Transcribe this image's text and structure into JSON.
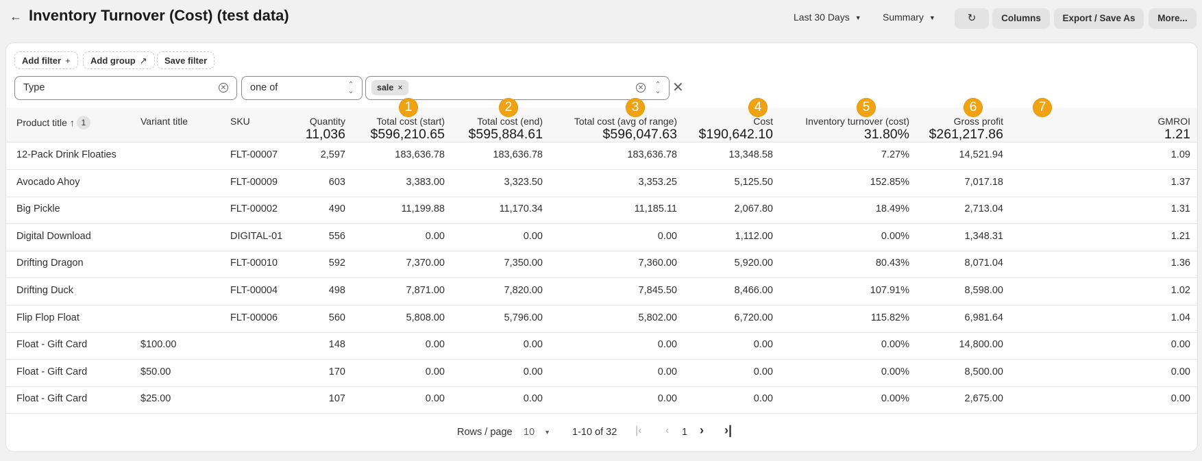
{
  "header": {
    "back_icon": "arrow-left-icon",
    "title": "Inventory Turnover (Cost) (test data)",
    "date_range": "Last 30 Days",
    "view": "Summary",
    "refresh_icon": "refresh-icon",
    "columns_label": "Columns",
    "export_label": "Export / Save As",
    "more_label": "More..."
  },
  "filters": {
    "add_filter": "Add filter",
    "add_filter_icon": "plus-icon",
    "add_group": "Add group",
    "add_group_icon": "add-group-icon",
    "save_filter": "Save filter",
    "field_value": "Type",
    "operator_value": "one of",
    "tag": "sale"
  },
  "table": {
    "columns": [
      {
        "label": "Product title",
        "total": ""
      },
      {
        "label": "Variant title",
        "total": ""
      },
      {
        "label": "SKU",
        "total": ""
      },
      {
        "label": "Quantity",
        "total": "11,036"
      },
      {
        "label": "Total cost (start)",
        "total": "$596,210.65",
        "badge": "1"
      },
      {
        "label": "Total cost (end)",
        "total": "$595,884.61",
        "badge": "2"
      },
      {
        "label": "Total cost (avg of range)",
        "total": "$596,047.63",
        "badge": "3"
      },
      {
        "label": "Cost",
        "total": "$190,642.10",
        "badge": "4"
      },
      {
        "label": "Inventory turnover (cost)",
        "total": "31.80%",
        "badge": "5"
      },
      {
        "label": "Gross profit",
        "total": "$261,217.86",
        "badge": "6"
      },
      {
        "label": "GMROI",
        "total": "1.21",
        "badge": "7"
      }
    ],
    "sort_badge": "1",
    "rows": [
      [
        "12-Pack Drink Floaties",
        "",
        "FLT-00007",
        "2,597",
        "183,636.78",
        "183,636.78",
        "183,636.78",
        "13,348.58",
        "7.27%",
        "14,521.94",
        "1.09"
      ],
      [
        "Avocado Ahoy",
        "",
        "FLT-00009",
        "603",
        "3,383.00",
        "3,323.50",
        "3,353.25",
        "5,125.50",
        "152.85%",
        "7,017.18",
        "1.37"
      ],
      [
        "Big Pickle",
        "",
        "FLT-00002",
        "490",
        "11,199.88",
        "11,170.34",
        "11,185.11",
        "2,067.80",
        "18.49%",
        "2,713.04",
        "1.31"
      ],
      [
        "Digital Download",
        "",
        "DIGITAL-01",
        "556",
        "0.00",
        "0.00",
        "0.00",
        "1,112.00",
        "0.00%",
        "1,348.31",
        "1.21"
      ],
      [
        "Drifting Dragon",
        "",
        "FLT-00010",
        "592",
        "7,370.00",
        "7,350.00",
        "7,360.00",
        "5,920.00",
        "80.43%",
        "8,071.04",
        "1.36"
      ],
      [
        "Drifting Duck",
        "",
        "FLT-00004",
        "498",
        "7,871.00",
        "7,820.00",
        "7,845.50",
        "8,466.00",
        "107.91%",
        "8,598.00",
        "1.02"
      ],
      [
        "Flip Flop Float",
        "",
        "FLT-00006",
        "560",
        "5,808.00",
        "5,796.00",
        "5,802.00",
        "6,720.00",
        "115.82%",
        "6,981.64",
        "1.04"
      ],
      [
        "Float - Gift Card",
        "$100.00",
        "",
        "148",
        "0.00",
        "0.00",
        "0.00",
        "0.00",
        "0.00%",
        "14,800.00",
        "0.00"
      ],
      [
        "Float - Gift Card",
        "$50.00",
        "",
        "170",
        "0.00",
        "0.00",
        "0.00",
        "0.00",
        "0.00%",
        "8,500.00",
        "0.00"
      ],
      [
        "Float - Gift Card",
        "$25.00",
        "",
        "107",
        "0.00",
        "0.00",
        "0.00",
        "0.00",
        "0.00%",
        "2,675.00",
        "0.00"
      ]
    ]
  },
  "pagination": {
    "rows_per_page_label": "Rows / page",
    "rows_per_page": "10",
    "range": "1-10 of 32",
    "page": "1"
  }
}
